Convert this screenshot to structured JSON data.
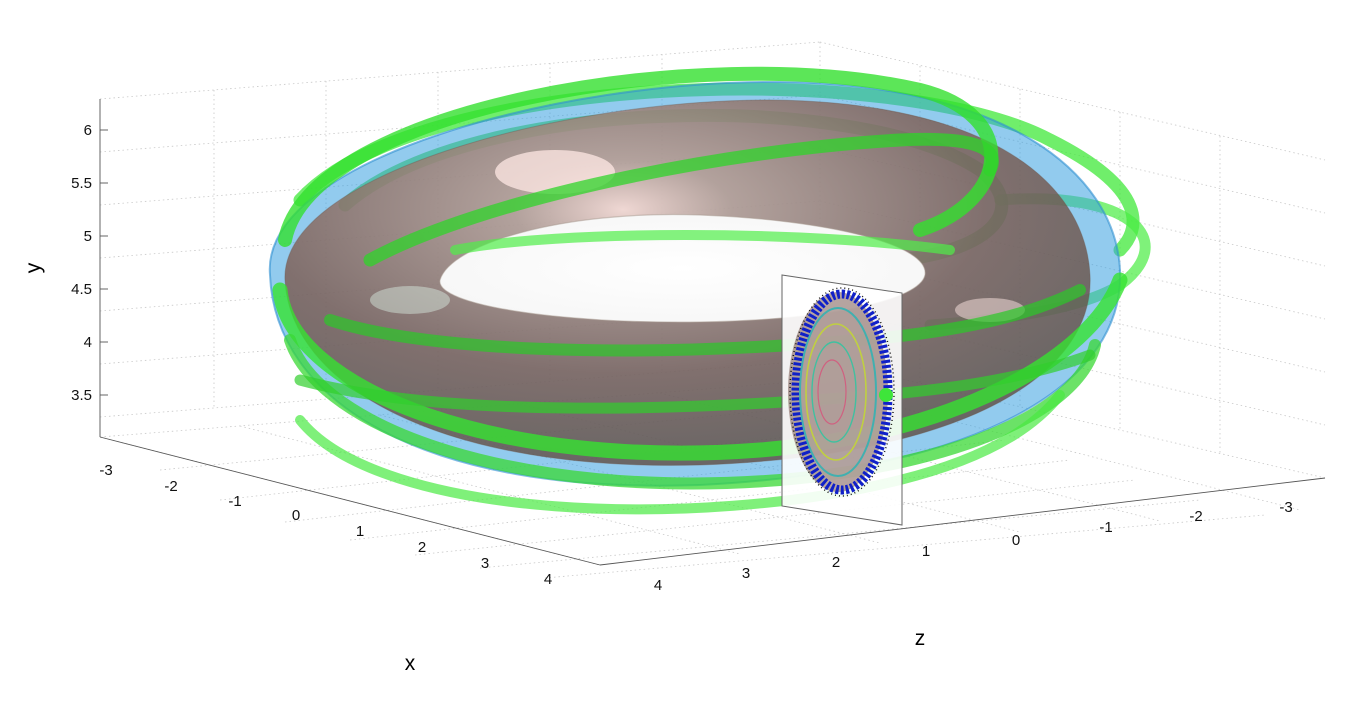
{
  "chart_data": {
    "type": "3d-surface",
    "xlabel": "x",
    "ylabel": "y",
    "zlabel": "z",
    "x_ticks": [
      "-3",
      "-2",
      "-1",
      "0",
      "1",
      "2",
      "3",
      "4"
    ],
    "y_ticks": [
      "3.5",
      "4",
      "4.5",
      "5",
      "5.5",
      "6"
    ],
    "z_ticks": [
      "4",
      "3",
      "2",
      "1",
      "0",
      "-1",
      "-2",
      "-3"
    ],
    "xlim": [
      -3.3,
      4.5
    ],
    "ylim": [
      3.1,
      6.3
    ],
    "zlim": [
      -3.3,
      4.5
    ],
    "grid": true,
    "colors": {
      "torus": "#8a6a5e",
      "outer_shell": "#39a0e0",
      "ribbons": "#3ee53a",
      "poincare_points": "#1020c8",
      "section_plane": "#ffffff"
    }
  }
}
